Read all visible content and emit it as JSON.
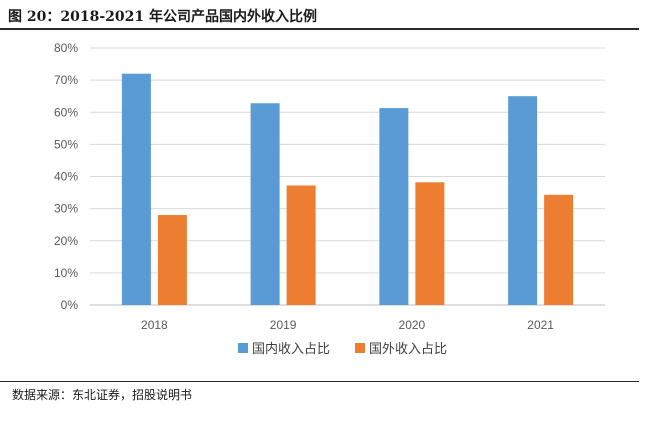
{
  "figure": {
    "title": "图 20：2018-2021 年公司产品国内外收入比例",
    "source": "数据来源：东北证券，招股说明书"
  },
  "chart_data": {
    "type": "bar",
    "categories": [
      "2018",
      "2019",
      "2020",
      "2021"
    ],
    "series": [
      {
        "name": "国内收入占比",
        "color": "#5B9BD5",
        "values": [
          72,
          62.8,
          61.3,
          65
        ]
      },
      {
        "name": "国外收入占比",
        "color": "#ED7D31",
        "values": [
          28,
          37.2,
          38.2,
          34.3
        ]
      }
    ],
    "ylim": [
      0,
      80
    ],
    "yticks": [
      "0%",
      "10%",
      "20%",
      "30%",
      "40%",
      "50%",
      "60%",
      "70%",
      "80%"
    ],
    "grid": true,
    "legend": "bottom"
  }
}
